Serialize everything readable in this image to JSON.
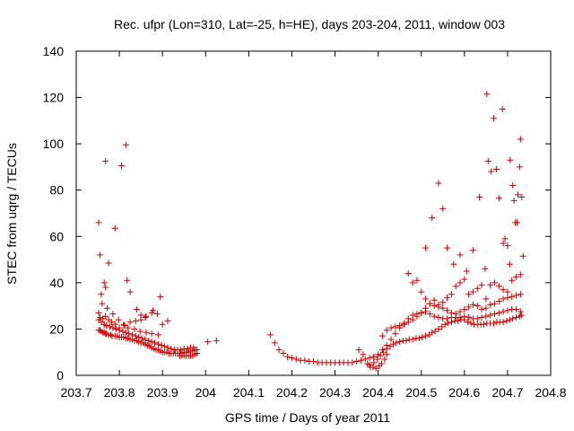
{
  "chart_data": {
    "type": "scatter",
    "title": "Rec. ufpr (Lon=310, Lat=-25, h=HE), days 203-204, 2011, window 003",
    "xlabel": "GPS time / Days of year 2011",
    "ylabel": "STEC from uqrg / TECUs",
    "xlim": [
      203.7,
      204.8
    ],
    "ylim": [
      0,
      140
    ],
    "xticks": [
      "203.7",
      "203.8",
      "203.9",
      "204",
      "204.1",
      "204.2",
      "204.3",
      "204.4",
      "204.5",
      "204.6",
      "204.7",
      "204.8"
    ],
    "yticks": [
      "0",
      "20",
      "40",
      "60",
      "80",
      "100",
      "120",
      "140"
    ],
    "grid": false,
    "legend": "none",
    "marker": "+",
    "color": "#cc0000",
    "series": [
      {
        "x": [
          203.752,
          203.755,
          203.758,
          203.762,
          203.765,
          203.768,
          203.77,
          203.775,
          203.78,
          203.783,
          203.79,
          203.795,
          203.8,
          203.805,
          203.81,
          203.815,
          203.82,
          203.825,
          203.83,
          203.835,
          203.84,
          203.845,
          203.85,
          203.855,
          203.86,
          203.865,
          203.87,
          203.875,
          203.88,
          203.885,
          203.89,
          203.895,
          203.9,
          203.905,
          203.91,
          203.915,
          203.92,
          203.925,
          203.93,
          203.935,
          203.94,
          203.945,
          203.95,
          203.955,
          203.96,
          203.965,
          203.97,
          203.975,
          203.98
        ],
        "y": [
          19.5,
          19.5,
          19.0,
          18.5,
          18.5,
          18.0,
          18.0,
          17.5,
          17.5,
          17.0,
          17.0,
          17.0,
          16.5,
          16.5,
          16.5,
          16.0,
          16.0,
          15.5,
          15.5,
          15.0,
          15.0,
          14.5,
          14.0,
          14.0,
          13.5,
          13.0,
          12.5,
          12.0,
          11.5,
          11.0,
          11.0,
          10.5,
          10.0,
          10.0,
          10.0,
          9.5,
          9.5,
          9.5,
          9.5,
          9.5,
          9.5,
          9.5,
          10.0,
          10.0,
          10.0,
          10.5,
          10.5,
          11.0,
          11.0
        ]
      },
      {
        "x": [
          203.752,
          203.758,
          203.765,
          203.77,
          203.778,
          203.785,
          203.792,
          203.8,
          203.808,
          203.815,
          203.822,
          203.83,
          203.838,
          203.845,
          203.852,
          203.86,
          203.868,
          203.875,
          203.882,
          203.89,
          203.898,
          203.905,
          203.912,
          203.92,
          203.928,
          203.935,
          203.942,
          203.95,
          203.958,
          203.965,
          203.972
        ],
        "y": [
          24.0,
          23.0,
          22.0,
          21.5,
          21.0,
          20.5,
          20.0,
          19.5,
          19.0,
          18.5,
          18.0,
          17.5,
          17.0,
          16.5,
          16.0,
          15.5,
          15.0,
          14.5,
          14.0,
          13.5,
          13.0,
          12.5,
          12.0,
          11.5,
          11.0,
          11.0,
          11.0,
          11.5,
          11.5,
          12.0,
          12.0
        ]
      },
      {
        "x": [
          203.752,
          203.755,
          203.762,
          203.768,
          203.775,
          203.782,
          203.79,
          203.8,
          203.812,
          203.825,
          203.838,
          203.85,
          203.862,
          203.875,
          203.888,
          203.9,
          203.912
        ],
        "y": [
          27.0,
          25.0,
          24.5,
          25.5,
          24.0,
          23.0,
          22.0,
          20.5,
          21.5,
          23.0,
          23.5,
          24.0,
          25.5,
          27.0,
          26.5,
          22.0,
          23.5
        ]
      },
      {
        "x": [
          203.752,
          203.755,
          203.758,
          203.765,
          203.768,
          203.775,
          203.79,
          203.805,
          203.815,
          203.818,
          203.825,
          203.84,
          203.85,
          203.86,
          203.878,
          203.895
        ],
        "y": [
          66.0,
          52.0,
          35.0,
          40.0,
          38.0,
          48.5,
          63.5,
          90.5,
          99.5,
          41.0,
          36.0,
          28.5,
          26.0,
          25.0,
          28.0,
          34.0
        ]
      },
      {
        "x": [
          203.768,
          203.76,
          203.772,
          203.785,
          203.798,
          203.81,
          203.82,
          203.835,
          203.848,
          203.862,
          203.875,
          203.89
        ],
        "y": [
          92.5,
          31.0,
          29.0,
          26.5,
          24.0,
          22.0,
          20.5,
          20.0,
          19.0,
          18.5,
          18.0,
          17.5
        ]
      },
      {
        "x": [
          203.94,
          203.945,
          203.95,
          203.955,
          203.96,
          203.965,
          203.97,
          203.975,
          203.98,
          204.005,
          204.025
        ],
        "y": [
          8.5,
          8.5,
          8.5,
          8.5,
          8.5,
          8.5,
          8.5,
          9.0,
          9.5,
          14.5,
          15.0
        ]
      },
      {
        "x": [
          204.15,
          204.16,
          204.17,
          204.18,
          204.19,
          204.2,
          204.21,
          204.22,
          204.23,
          204.24,
          204.25,
          204.26,
          204.27,
          204.28,
          204.29,
          204.3,
          204.31,
          204.32,
          204.33,
          204.34,
          204.35,
          204.36,
          204.37,
          204.38,
          204.39
        ],
        "y": [
          17.5,
          14.0,
          11.0,
          9.5,
          8.0,
          7.5,
          7.0,
          6.5,
          6.5,
          6.0,
          6.0,
          5.5,
          5.5,
          5.5,
          5.5,
          5.5,
          5.5,
          5.5,
          5.5,
          5.5,
          6.0,
          6.5,
          7.0,
          7.5,
          8.0
        ]
      },
      {
        "x": [
          204.355,
          204.365,
          204.375,
          204.382,
          204.388,
          204.395,
          204.402,
          204.408,
          204.415,
          204.42
        ],
        "y": [
          11.0,
          9.0,
          5.0,
          3.5,
          3.5,
          3.0,
          4.0,
          5.0,
          7.0,
          9.0
        ]
      },
      {
        "x": [
          204.38,
          204.39,
          204.398,
          204.405,
          204.412,
          204.42,
          204.428,
          204.435,
          204.442,
          204.45,
          204.458,
          204.465,
          204.472,
          204.48,
          204.488,
          204.495,
          204.502,
          204.51,
          204.518,
          204.525,
          204.532,
          204.54,
          204.548,
          204.555,
          204.562,
          204.57,
          204.578,
          204.585,
          204.592,
          204.6,
          204.608,
          204.615,
          204.622,
          204.63,
          204.638,
          204.645,
          204.652,
          204.66,
          204.668,
          204.675,
          204.682,
          204.69,
          204.698,
          204.705,
          204.712,
          204.72,
          204.728,
          204.732
        ],
        "y": [
          4.5,
          5.5,
          7.0,
          8.5,
          10.0,
          11.5,
          12.5,
          13.5,
          14.0,
          14.5,
          15.0,
          15.0,
          15.5,
          15.5,
          16.0,
          16.0,
          16.5,
          17.0,
          17.5,
          18.5,
          19.0,
          20.0,
          21.0,
          22.0,
          22.5,
          23.0,
          23.5,
          23.5,
          24.0,
          24.0,
          23.0,
          22.5,
          22.0,
          22.0,
          22.0,
          22.0,
          22.5,
          22.5,
          22.5,
          23.0,
          23.0,
          23.0,
          23.5,
          24.0,
          24.5,
          25.0,
          25.5,
          26.0
        ]
      },
      {
        "x": [
          204.39,
          204.4,
          204.41,
          204.42,
          204.43,
          204.44,
          204.45,
          204.46,
          204.47,
          204.48,
          204.49,
          204.5,
          204.51,
          204.52,
          204.53,
          204.54,
          204.55,
          204.56,
          204.57,
          204.58,
          204.59,
          204.6,
          204.61,
          204.62,
          204.63,
          204.64,
          204.65,
          204.66,
          204.67,
          204.68,
          204.69,
          204.7,
          204.71,
          204.72,
          204.73
        ],
        "y": [
          8.0,
          9.0,
          11.0,
          13.0,
          15.5,
          18.0,
          20.5,
          22.5,
          24.5,
          26.0,
          26.5,
          27.0,
          27.5,
          26.5,
          25.5,
          25.0,
          24.5,
          24.5,
          25.0,
          25.0,
          25.0,
          25.5,
          25.0,
          24.5,
          24.5,
          25.0,
          25.5,
          26.0,
          26.5,
          27.0,
          27.5,
          28.0,
          28.5,
          28.5,
          27.5
        ]
      },
      {
        "x": [
          204.41,
          204.42,
          204.43,
          204.44,
          204.45,
          204.46,
          204.47,
          204.48,
          204.49,
          204.5,
          204.51,
          204.52,
          204.53,
          204.54,
          204.55,
          204.56,
          204.57,
          204.58,
          204.59,
          204.6,
          204.61,
          204.62,
          204.63,
          204.64,
          204.65,
          204.66,
          204.67,
          204.68,
          204.69,
          204.7,
          204.71,
          204.72,
          204.73
        ],
        "y": [
          17.0,
          19.5,
          20.5,
          21.0,
          21.5,
          22.0,
          23.0,
          24.0,
          25.5,
          27.0,
          29.0,
          31.0,
          32.5,
          30.5,
          29.0,
          28.0,
          27.0,
          26.5,
          27.5,
          28.5,
          29.5,
          30.5,
          30.0,
          28.5,
          29.0,
          30.5,
          31.0,
          32.0,
          33.0,
          33.5,
          34.0,
          34.5,
          35.0
        ]
      },
      {
        "x": [
          204.47,
          204.48,
          204.49,
          204.5,
          204.51,
          204.52,
          204.53,
          204.54,
          204.55,
          204.56,
          204.57,
          204.58,
          204.59,
          204.6,
          204.61,
          204.62,
          204.63,
          204.64,
          204.65,
          204.66,
          204.67,
          204.68,
          204.69,
          204.7,
          204.71,
          204.72,
          204.73
        ],
        "y": [
          44.0,
          40.0,
          41.0,
          36.0,
          33.0,
          31.0,
          30.0,
          29.5,
          31.5,
          33.5,
          35.0,
          38.5,
          40.0,
          41.5,
          35.0,
          36.0,
          37.5,
          39.0,
          33.0,
          39.0,
          40.0,
          38.5,
          37.0,
          36.0,
          41.0,
          42.5,
          43.5
        ]
      },
      {
        "x": [
          204.51,
          204.525,
          204.54,
          204.55,
          204.56,
          204.575,
          204.59,
          204.605,
          204.62,
          204.635,
          204.648,
          204.655,
          204.662,
          204.668,
          204.674,
          204.68,
          204.688,
          204.694,
          204.7,
          204.706,
          204.712,
          204.718,
          204.724,
          204.73
        ],
        "y": [
          55.0,
          68.0,
          83.0,
          72.0,
          55.0,
          48.0,
          52.0,
          45.0,
          54.0,
          77.0,
          46.0,
          92.5,
          88.0,
          111.0,
          89.0,
          76.5,
          115.0,
          59.0,
          56.0,
          93.0,
          82.0,
          66.0,
          78.0,
          102.0
        ]
      },
      {
        "x": [
          204.652,
          204.69,
          204.705,
          204.715,
          204.722,
          204.728,
          204.733,
          204.736
        ],
        "y": [
          121.5,
          57.0,
          48.0,
          75.5,
          66.0,
          90.0,
          77.0,
          51.5
        ]
      }
    ]
  }
}
